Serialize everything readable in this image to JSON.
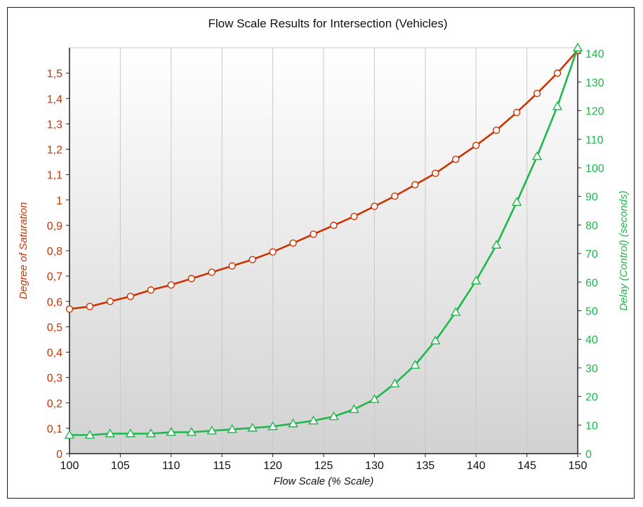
{
  "chart_data": {
    "type": "line",
    "title": "Flow Scale Results for Intersection (Vehicles)",
    "xlabel": "Flow Scale (% Scale)",
    "ylabel_left": "Degree of Saturation",
    "ylabel_right": "Delay (Control) (seconds)",
    "xlim": [
      100,
      150
    ],
    "ylim_left": [
      0,
      1.6
    ],
    "ylim_right": [
      0,
      142
    ],
    "x_ticks": [
      "100",
      "105",
      "110",
      "115",
      "120",
      "125",
      "130",
      "135",
      "140",
      "145",
      "150"
    ],
    "y_left_ticks": [
      "0",
      "0,1",
      "0,2",
      "0,3",
      "0,4",
      "0,5",
      "0,6",
      "0,7",
      "0,8",
      "0,9",
      "1",
      "1,1",
      "1,2",
      "1,3",
      "1,4",
      "1,5"
    ],
    "y_right_ticks": [
      "0",
      "10",
      "20",
      "30",
      "40",
      "50",
      "60",
      "70",
      "80",
      "90",
      "100",
      "110",
      "120",
      "130",
      "140"
    ],
    "grid": "vertical",
    "x": [
      100,
      102,
      104,
      106,
      108,
      110,
      112,
      114,
      116,
      118,
      120,
      122,
      124,
      126,
      128,
      130,
      132,
      134,
      136,
      138,
      140,
      142,
      144,
      146,
      148,
      150
    ],
    "series": [
      {
        "axis": "left",
        "color": "#cc3300",
        "marker": "circle",
        "values": [
          0.57,
          0.58,
          0.6,
          0.62,
          0.645,
          0.665,
          0.69,
          0.715,
          0.74,
          0.765,
          0.795,
          0.83,
          0.865,
          0.9,
          0.935,
          0.975,
          1.015,
          1.06,
          1.105,
          1.16,
          1.215,
          1.275,
          1.345,
          1.42,
          1.5,
          1.59
        ]
      },
      {
        "axis": "right",
        "color": "#1db84b",
        "marker": "triangle",
        "values": [
          6.5,
          6.5,
          7,
          7,
          7,
          7.5,
          7.5,
          8,
          8.5,
          9,
          9.5,
          10.5,
          11.5,
          13,
          15.5,
          19,
          24.5,
          31,
          39.5,
          49.5,
          60.5,
          73,
          88,
          104,
          121.5,
          142
        ]
      }
    ]
  }
}
